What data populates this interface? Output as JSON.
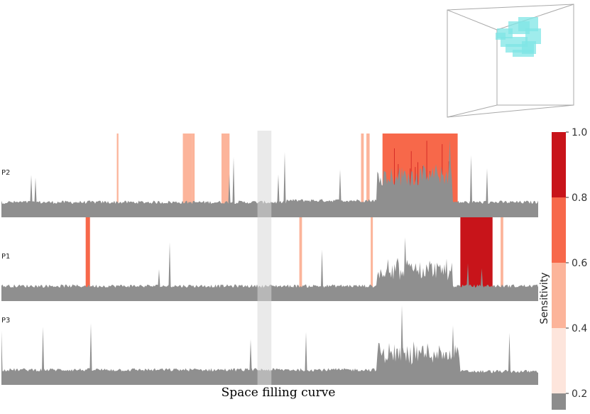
{
  "chart_data": {
    "type": "area",
    "xlabel": "Space filling curve",
    "rows": [
      {
        "label": "P2",
        "baseline": 0.18,
        "profile": [
          {
            "x": [
              0,
              0.53
            ],
            "level": 0.18
          },
          {
            "x": [
              0.53,
              0.7
            ],
            "level": 0.2
          },
          {
            "x": [
              0.7,
              0.84
            ],
            "level": 0.5
          },
          {
            "x": [
              0.84,
              1.0
            ],
            "level": 0.18
          }
        ],
        "sensitive_bands": [
          {
            "x": [
              0.215,
              0.218
            ],
            "sensitivity": 0.45
          },
          {
            "x": [
              0.338,
              0.355
            ],
            "sensitivity": 0.55
          },
          {
            "x": [
              0.355,
              0.36
            ],
            "sensitivity": 0.45
          },
          {
            "x": [
              0.41,
              0.425
            ],
            "sensitivity": 0.55
          },
          {
            "x": [
              0.67,
              0.675
            ],
            "sensitivity": 0.45
          },
          {
            "x": [
              0.68,
              0.686
            ],
            "sensitivity": 0.5
          },
          {
            "x": [
              0.71,
              0.85
            ],
            "sensitivity": 0.62
          }
        ]
      },
      {
        "label": "P1",
        "baseline": 0.18,
        "profile": [
          {
            "x": [
              0,
              0.7
            ],
            "level": 0.18
          },
          {
            "x": [
              0.7,
              0.84
            ],
            "level": 0.38
          },
          {
            "x": [
              0.84,
              1.0
            ],
            "level": 0.18
          }
        ],
        "sensitive_bands": [
          {
            "x": [
              0.157,
              0.165
            ],
            "sensitivity": 0.62
          },
          {
            "x": [
              0.555,
              0.56
            ],
            "sensitivity": 0.45
          },
          {
            "x": [
              0.688,
              0.692
            ],
            "sensitivity": 0.45
          },
          {
            "x": [
              0.855,
              0.915
            ],
            "sensitivity": 0.85
          },
          {
            "x": [
              0.93,
              0.935
            ],
            "sensitivity": 0.45
          }
        ]
      },
      {
        "label": "P3",
        "baseline": 0.18,
        "profile": [
          {
            "x": [
              0,
              0.7
            ],
            "level": 0.18
          },
          {
            "x": [
              0.7,
              0.855
            ],
            "level": 0.38
          },
          {
            "x": [
              0.855,
              1.0
            ],
            "level": 0.16
          }
        ],
        "sensitive_bands": []
      }
    ],
    "highlight_range": [
      0.477,
      0.503
    ],
    "colorbar": {
      "title": "Sensitivity",
      "range": [
        0.15,
        1.0
      ],
      "ticks": [
        "1.0",
        "0.8",
        "0.6",
        "0.4",
        "0.2"
      ],
      "bins": [
        {
          "from": 0.15,
          "to": 0.2,
          "color": "#8c8c8c"
        },
        {
          "from": 0.2,
          "to": 0.4,
          "color": "#fde5dc"
        },
        {
          "from": 0.4,
          "to": 0.6,
          "color": "#fcb49a"
        },
        {
          "from": 0.6,
          "to": 0.8,
          "color": "#f7684a"
        },
        {
          "from": 0.8,
          "to": 1.0,
          "color": "#c8141a"
        }
      ]
    },
    "colors": {
      "signal": "#8f8f8f",
      "highlight": "#d9d9d9",
      "inset_box": "#a9a9a9",
      "inset_shape": "#7fe6e6"
    }
  }
}
